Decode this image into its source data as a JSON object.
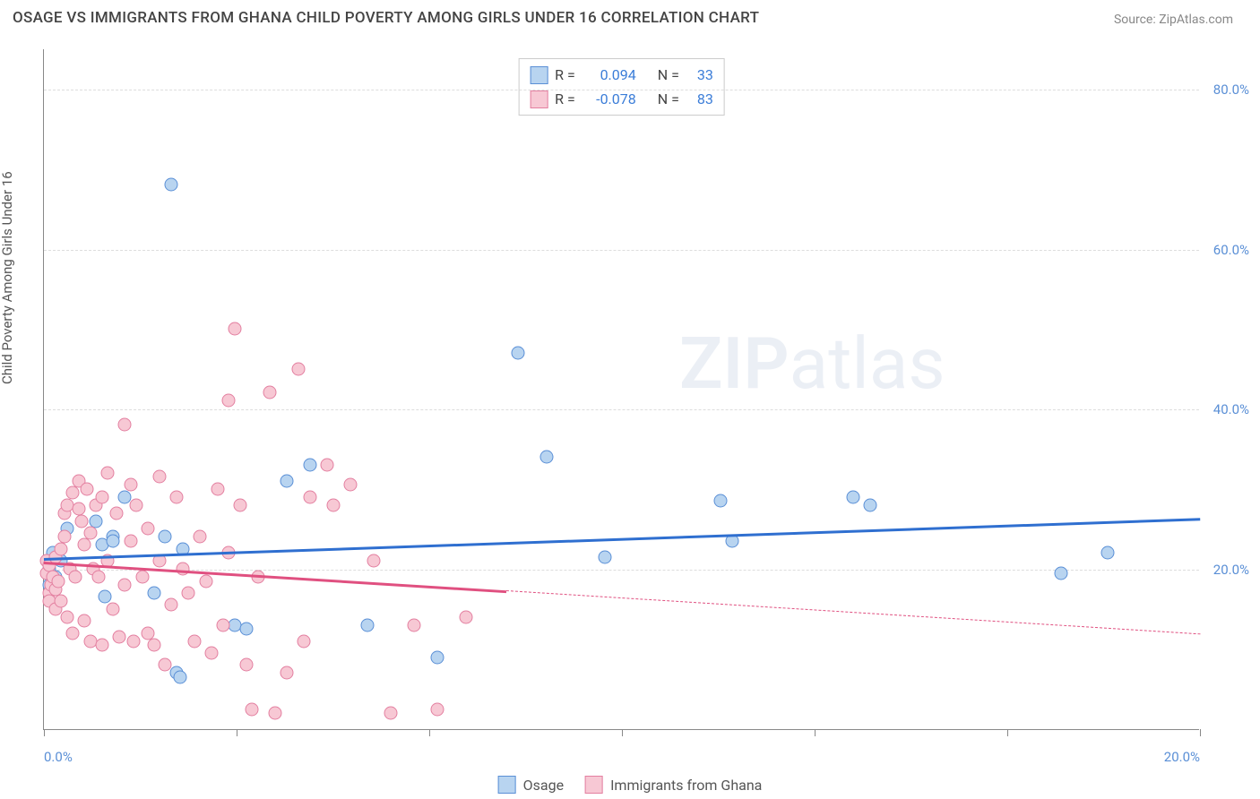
{
  "title": "OSAGE VS IMMIGRANTS FROM GHANA CHILD POVERTY AMONG GIRLS UNDER 16 CORRELATION CHART",
  "source_label": "Source: ",
  "source_value": "ZipAtlas.com",
  "y_axis_label": "Child Poverty Among Girls Under 16",
  "watermark_bold": "ZIP",
  "watermark_rest": "atlas",
  "chart": {
    "type": "scatter",
    "xlim": [
      0,
      20
    ],
    "ylim": [
      0,
      85
    ],
    "x_ticks": [
      0,
      3.33,
      6.67,
      10,
      13.33,
      16.67,
      20
    ],
    "x_tick_labels_shown": {
      "0": "0.0%",
      "20": "20.0%"
    },
    "y_ticks": [
      20,
      40,
      60,
      80
    ],
    "y_tick_labels": [
      "20.0%",
      "40.0%",
      "60.0%",
      "80.0%"
    ],
    "grid_color": "#dddddd",
    "axis_color": "#888888",
    "tick_label_color": "#5a8fd6",
    "background_color": "#ffffff",
    "point_radius": 7.5,
    "series": [
      {
        "name": "Osage",
        "fill": "#b8d4f0",
        "stroke": "#5a8fd6",
        "r_value": "0.094",
        "n_value": "33",
        "trend": {
          "x1": 0,
          "y1": 21.5,
          "x2": 20,
          "y2": 26.5,
          "color": "#2f6fd0",
          "solid_until_x": 20
        },
        "points": [
          [
            0.1,
            18
          ],
          [
            0.1,
            20
          ],
          [
            0.15,
            22
          ],
          [
            0.2,
            19
          ],
          [
            0.3,
            21
          ],
          [
            0.4,
            25
          ],
          [
            0.9,
            26
          ],
          [
            1.0,
            23
          ],
          [
            1.05,
            16.5
          ],
          [
            1.2,
            24
          ],
          [
            1.2,
            23.5
          ],
          [
            1.4,
            29
          ],
          [
            1.9,
            17
          ],
          [
            2.1,
            24
          ],
          [
            2.3,
            7
          ],
          [
            2.35,
            6.5
          ],
          [
            2.4,
            22.5
          ],
          [
            2.2,
            68
          ],
          [
            3.3,
            13
          ],
          [
            3.5,
            12.5
          ],
          [
            4.2,
            31
          ],
          [
            4.6,
            33
          ],
          [
            5.6,
            13
          ],
          [
            6.8,
            9
          ],
          [
            8.2,
            47
          ],
          [
            8.7,
            34
          ],
          [
            9.7,
            21.5
          ],
          [
            11.7,
            28.5
          ],
          [
            11.9,
            23.5
          ],
          [
            14.0,
            29
          ],
          [
            14.3,
            28
          ],
          [
            17.6,
            19.5
          ],
          [
            18.4,
            22
          ]
        ]
      },
      {
        "name": "Immigrants from Ghana",
        "fill": "#f7c8d4",
        "stroke": "#e37fa0",
        "r_value": "-0.078",
        "n_value": "83",
        "trend": {
          "x1": 0,
          "y1": 21,
          "x2": 20,
          "y2": 12,
          "color": "#e05080",
          "solid_until_x": 8
        },
        "points": [
          [
            0.05,
            19.5
          ],
          [
            0.05,
            21
          ],
          [
            0.1,
            17
          ],
          [
            0.1,
            16
          ],
          [
            0.1,
            20.5
          ],
          [
            0.12,
            18
          ],
          [
            0.15,
            19
          ],
          [
            0.2,
            15
          ],
          [
            0.2,
            17.5
          ],
          [
            0.2,
            21.5
          ],
          [
            0.25,
            18.5
          ],
          [
            0.3,
            22.5
          ],
          [
            0.3,
            16
          ],
          [
            0.35,
            27
          ],
          [
            0.35,
            24
          ],
          [
            0.4,
            28
          ],
          [
            0.4,
            14
          ],
          [
            0.45,
            20
          ],
          [
            0.5,
            29.5
          ],
          [
            0.5,
            12
          ],
          [
            0.55,
            19
          ],
          [
            0.6,
            27.5
          ],
          [
            0.6,
            31
          ],
          [
            0.65,
            26
          ],
          [
            0.7,
            23
          ],
          [
            0.7,
            13.5
          ],
          [
            0.75,
            30
          ],
          [
            0.8,
            24.5
          ],
          [
            0.8,
            11
          ],
          [
            0.85,
            20
          ],
          [
            0.9,
            28
          ],
          [
            0.95,
            19
          ],
          [
            1.0,
            29
          ],
          [
            1.0,
            10.5
          ],
          [
            1.1,
            21
          ],
          [
            1.1,
            32
          ],
          [
            1.2,
            15
          ],
          [
            1.25,
            27
          ],
          [
            1.3,
            11.5
          ],
          [
            1.4,
            18
          ],
          [
            1.4,
            38
          ],
          [
            1.5,
            23.5
          ],
          [
            1.5,
            30.5
          ],
          [
            1.55,
            11
          ],
          [
            1.6,
            28
          ],
          [
            1.7,
            19
          ],
          [
            1.8,
            12
          ],
          [
            1.8,
            25
          ],
          [
            1.9,
            10.5
          ],
          [
            2.0,
            21
          ],
          [
            2.0,
            31.5
          ],
          [
            2.1,
            8
          ],
          [
            2.2,
            15.5
          ],
          [
            2.3,
            29
          ],
          [
            2.4,
            20
          ],
          [
            2.5,
            17
          ],
          [
            2.6,
            11
          ],
          [
            2.7,
            24
          ],
          [
            2.8,
            18.5
          ],
          [
            2.9,
            9.5
          ],
          [
            3.0,
            30
          ],
          [
            3.1,
            13
          ],
          [
            3.2,
            22
          ],
          [
            3.2,
            41
          ],
          [
            3.3,
            50
          ],
          [
            3.4,
            28
          ],
          [
            3.5,
            8
          ],
          [
            3.6,
            2.5
          ],
          [
            3.7,
            19
          ],
          [
            3.9,
            42
          ],
          [
            4.0,
            2
          ],
          [
            4.2,
            7
          ],
          [
            4.4,
            45
          ],
          [
            4.5,
            11
          ],
          [
            4.6,
            29
          ],
          [
            4.9,
            33
          ],
          [
            5.0,
            28
          ],
          [
            5.3,
            30.5
          ],
          [
            5.7,
            21
          ],
          [
            6.0,
            2
          ],
          [
            6.4,
            13
          ],
          [
            6.8,
            2.5
          ],
          [
            7.3,
            14
          ]
        ]
      }
    ]
  },
  "legend": {
    "items": [
      {
        "label": "Osage",
        "fill": "#b8d4f0",
        "stroke": "#5a8fd6"
      },
      {
        "label": "Immigrants from Ghana",
        "fill": "#f7c8d4",
        "stroke": "#e37fa0"
      }
    ]
  },
  "stats_labels": {
    "r": "R =",
    "n": "N ="
  }
}
